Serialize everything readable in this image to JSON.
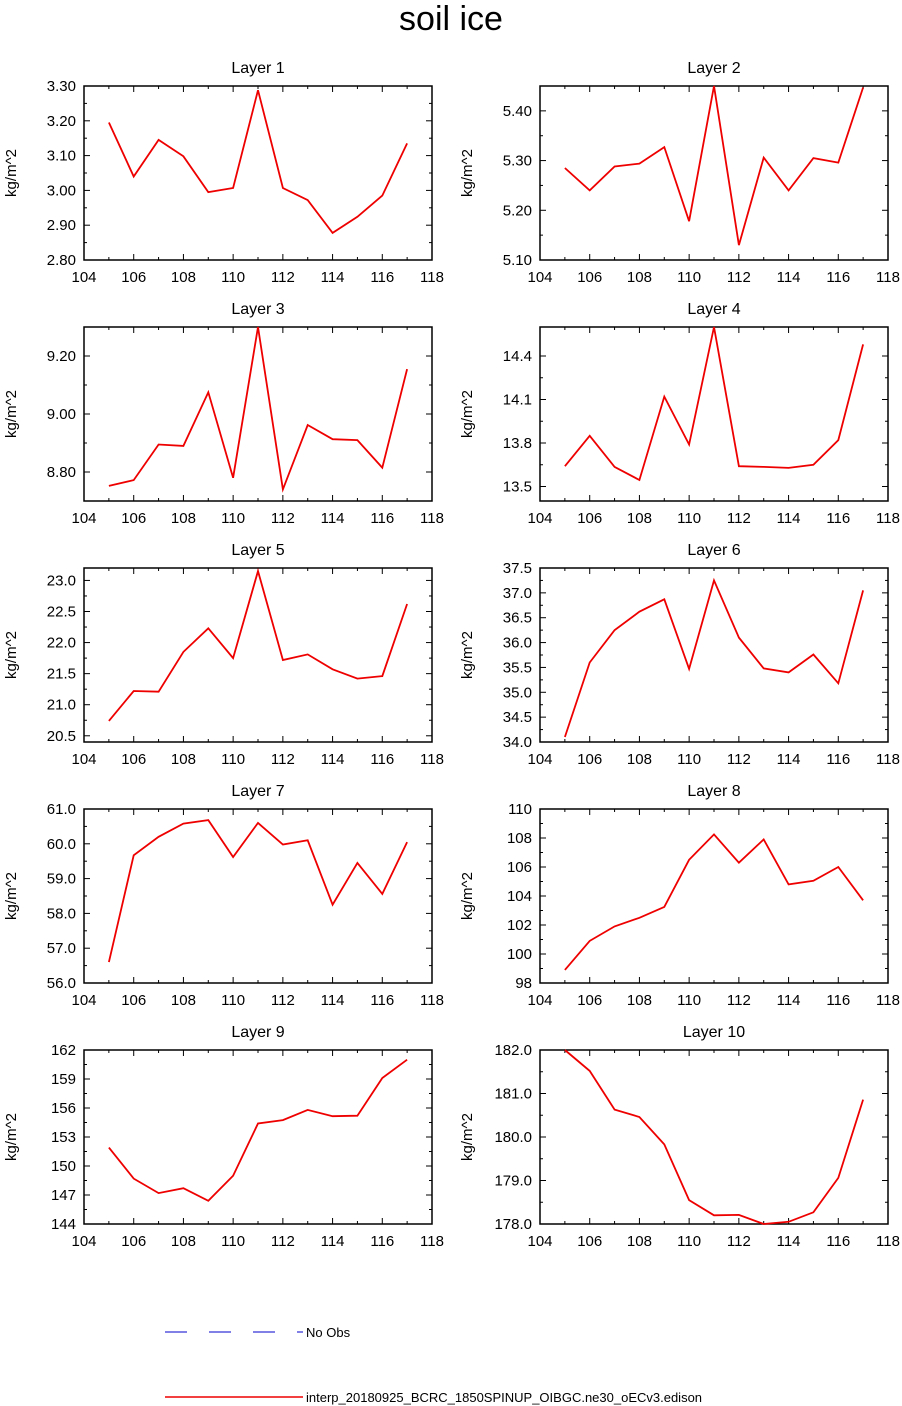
{
  "title": "soil ice",
  "colors": {
    "series": "#ee0000",
    "obs": "#0000cc",
    "axis": "#000000"
  },
  "legend": [
    {
      "label": "No Obs",
      "style": "dashed",
      "color": "#0000cc"
    },
    {
      "label": "interp_20180925_BCRC_1850SPINUP_OIBGC.ne30_oECv3.edison",
      "style": "solid",
      "color": "#ee0000"
    }
  ],
  "chart_data": [
    {
      "type": "line",
      "title": "Layer 1",
      "ylabel": "kg/m^2",
      "x": [
        105,
        106,
        107,
        108,
        109,
        110,
        111,
        112,
        113,
        114,
        115,
        116,
        117
      ],
      "values": [
        3.195,
        3.04,
        3.145,
        3.098,
        2.995,
        3.007,
        3.288,
        3.007,
        2.972,
        2.878,
        2.924,
        2.985,
        3.135
      ],
      "xlim": [
        104,
        118
      ],
      "ylim": [
        2.8,
        3.3
      ],
      "xticks": [
        "104",
        "106",
        "108",
        "110",
        "112",
        "114",
        "116",
        "118"
      ],
      "yticks": [
        2.8,
        2.9,
        3.0,
        3.1,
        3.2,
        3.3
      ],
      "yticklabels": [
        "2.80",
        "2.90",
        "3.00",
        "3.10",
        "3.20",
        "3.30"
      ]
    },
    {
      "type": "line",
      "title": "Layer 2",
      "ylabel": "kg/m^2",
      "x": [
        105,
        106,
        107,
        108,
        109,
        110,
        111,
        112,
        113,
        114,
        115,
        116,
        117
      ],
      "values": [
        5.285,
        5.24,
        5.288,
        5.294,
        5.327,
        5.178,
        5.45,
        5.13,
        5.306,
        5.24,
        5.305,
        5.296,
        5.447
      ],
      "xlim": [
        104,
        118
      ],
      "ylim": [
        5.1,
        5.45
      ],
      "xticks": [
        "104",
        "106",
        "108",
        "110",
        "112",
        "114",
        "116",
        "118"
      ],
      "yticks": [
        5.1,
        5.2,
        5.3,
        5.4
      ],
      "yticklabels": [
        "5.10",
        "5.20",
        "5.30",
        "5.40"
      ]
    },
    {
      "type": "line",
      "title": "Layer 3",
      "ylabel": "kg/m^2",
      "x": [
        105,
        106,
        107,
        108,
        109,
        110,
        111,
        112,
        113,
        114,
        115,
        116,
        117
      ],
      "values": [
        8.752,
        8.772,
        8.895,
        8.89,
        9.075,
        8.78,
        9.3,
        8.74,
        8.962,
        8.913,
        8.91,
        8.815,
        9.155
      ],
      "xlim": [
        104,
        118
      ],
      "ylim": [
        8.7,
        9.3
      ],
      "xticks": [
        "104",
        "106",
        "108",
        "110",
        "112",
        "114",
        "116",
        "118"
      ],
      "yticks": [
        8.8,
        9.0,
        9.2
      ],
      "yticklabels": [
        "8.80",
        "9.00",
        "9.20"
      ]
    },
    {
      "type": "line",
      "title": "Layer 4",
      "ylabel": "kg/m^2",
      "x": [
        105,
        106,
        107,
        108,
        109,
        110,
        111,
        112,
        113,
        114,
        115,
        116,
        117
      ],
      "values": [
        13.64,
        13.85,
        13.635,
        13.545,
        14.12,
        13.79,
        14.6,
        13.64,
        13.635,
        13.628,
        13.65,
        13.82,
        14.48
      ],
      "xlim": [
        104,
        118
      ],
      "ylim": [
        13.4,
        14.6
      ],
      "xticks": [
        "104",
        "106",
        "108",
        "110",
        "112",
        "114",
        "116",
        "118"
      ],
      "yticks": [
        13.5,
        13.8,
        14.1,
        14.4
      ],
      "yticklabels": [
        "13.5",
        "13.8",
        "14.1",
        "14.4"
      ]
    },
    {
      "type": "line",
      "title": "Layer 5",
      "ylabel": "kg/m^2",
      "x": [
        105,
        106,
        107,
        108,
        109,
        110,
        111,
        112,
        113,
        114,
        115,
        116,
        117
      ],
      "values": [
        20.74,
        21.22,
        21.21,
        21.85,
        22.23,
        21.75,
        23.15,
        21.72,
        21.81,
        21.57,
        21.42,
        21.46,
        22.62
      ],
      "xlim": [
        104,
        118
      ],
      "ylim": [
        20.4,
        23.2
      ],
      "xticks": [
        "104",
        "106",
        "108",
        "110",
        "112",
        "114",
        "116",
        "118"
      ],
      "yticks": [
        20.5,
        21.0,
        21.5,
        22.0,
        22.5,
        23.0
      ],
      "yticklabels": [
        "20.5",
        "21.0",
        "21.5",
        "22.0",
        "22.5",
        "23.0"
      ]
    },
    {
      "type": "line",
      "title": "Layer 6",
      "ylabel": "kg/m^2",
      "x": [
        105,
        106,
        107,
        108,
        109,
        110,
        111,
        112,
        113,
        114,
        115,
        116,
        117
      ],
      "values": [
        34.1,
        35.6,
        36.25,
        36.62,
        36.87,
        35.47,
        37.25,
        36.1,
        35.48,
        35.4,
        35.76,
        35.18,
        37.05
      ],
      "xlim": [
        104,
        118
      ],
      "ylim": [
        34.0,
        37.5
      ],
      "xticks": [
        "104",
        "106",
        "108",
        "110",
        "112",
        "114",
        "116",
        "118"
      ],
      "yticks": [
        34.0,
        34.5,
        35.0,
        35.5,
        36.0,
        36.5,
        37.0,
        37.5
      ],
      "yticklabels": [
        "34.0",
        "34.5",
        "35.0",
        "35.5",
        "36.0",
        "36.5",
        "37.0",
        "37.5"
      ]
    },
    {
      "type": "line",
      "title": "Layer 7",
      "ylabel": "kg/m^2",
      "x": [
        105,
        106,
        107,
        108,
        109,
        110,
        111,
        112,
        113,
        114,
        115,
        116,
        117
      ],
      "values": [
        56.6,
        59.67,
        60.2,
        60.58,
        60.68,
        59.62,
        60.6,
        59.98,
        60.1,
        58.25,
        59.45,
        58.56,
        60.05
      ],
      "xlim": [
        104,
        118
      ],
      "ylim": [
        56.0,
        61.0
      ],
      "xticks": [
        "104",
        "106",
        "108",
        "110",
        "112",
        "114",
        "116",
        "118"
      ],
      "yticks": [
        56,
        57,
        58,
        59,
        60,
        61
      ],
      "yticklabels": [
        "56.0",
        "57.0",
        "58.0",
        "59.0",
        "60.0",
        "61.0"
      ]
    },
    {
      "type": "line",
      "title": "Layer 8",
      "ylabel": "kg/m^2",
      "x": [
        105,
        106,
        107,
        108,
        109,
        110,
        111,
        112,
        113,
        114,
        115,
        116,
        117
      ],
      "values": [
        98.9,
        100.9,
        101.9,
        102.5,
        103.25,
        106.5,
        108.25,
        106.3,
        107.9,
        104.8,
        105.05,
        106.0,
        103.7
      ],
      "xlim": [
        104,
        118
      ],
      "ylim": [
        98,
        110
      ],
      "xticks": [
        "104",
        "106",
        "108",
        "110",
        "112",
        "114",
        "116",
        "118"
      ],
      "yticks": [
        98,
        100,
        102,
        104,
        106,
        108,
        110
      ],
      "yticklabels": [
        "98",
        "100",
        "102",
        "104",
        "106",
        "108",
        "110"
      ]
    },
    {
      "type": "line",
      "title": "Layer 9",
      "ylabel": "kg/m^2",
      "x": [
        105,
        106,
        107,
        108,
        109,
        110,
        111,
        112,
        113,
        114,
        115,
        116,
        117
      ],
      "values": [
        151.9,
        148.7,
        147.2,
        147.7,
        146.4,
        149.0,
        154.4,
        154.75,
        155.8,
        155.15,
        155.2,
        159.1,
        161.0
      ],
      "xlim": [
        104,
        118
      ],
      "ylim": [
        144,
        162
      ],
      "xticks": [
        "104",
        "106",
        "108",
        "110",
        "112",
        "114",
        "116",
        "118"
      ],
      "yticks": [
        144,
        147,
        150,
        153,
        156,
        159,
        162
      ],
      "yticklabels": [
        "144",
        "147",
        "150",
        "153",
        "156",
        "159",
        "162"
      ]
    },
    {
      "type": "line",
      "title": "Layer 10",
      "ylabel": "kg/m^2",
      "x": [
        105,
        106,
        107,
        108,
        109,
        110,
        111,
        112,
        113,
        114,
        115,
        116,
        117
      ],
      "values": [
        182.0,
        181.52,
        180.63,
        180.46,
        179.83,
        178.55,
        178.2,
        178.21,
        178.0,
        178.05,
        178.27,
        179.06,
        180.86
      ],
      "xlim": [
        104,
        118
      ],
      "ylim": [
        178,
        182
      ],
      "xticks": [
        "104",
        "106",
        "108",
        "110",
        "112",
        "114",
        "116",
        "118"
      ],
      "yticks": [
        178,
        179,
        180,
        181,
        182
      ],
      "yticklabels": [
        "178.0",
        "179.0",
        "180.0",
        "181.0",
        "182.0"
      ]
    }
  ]
}
